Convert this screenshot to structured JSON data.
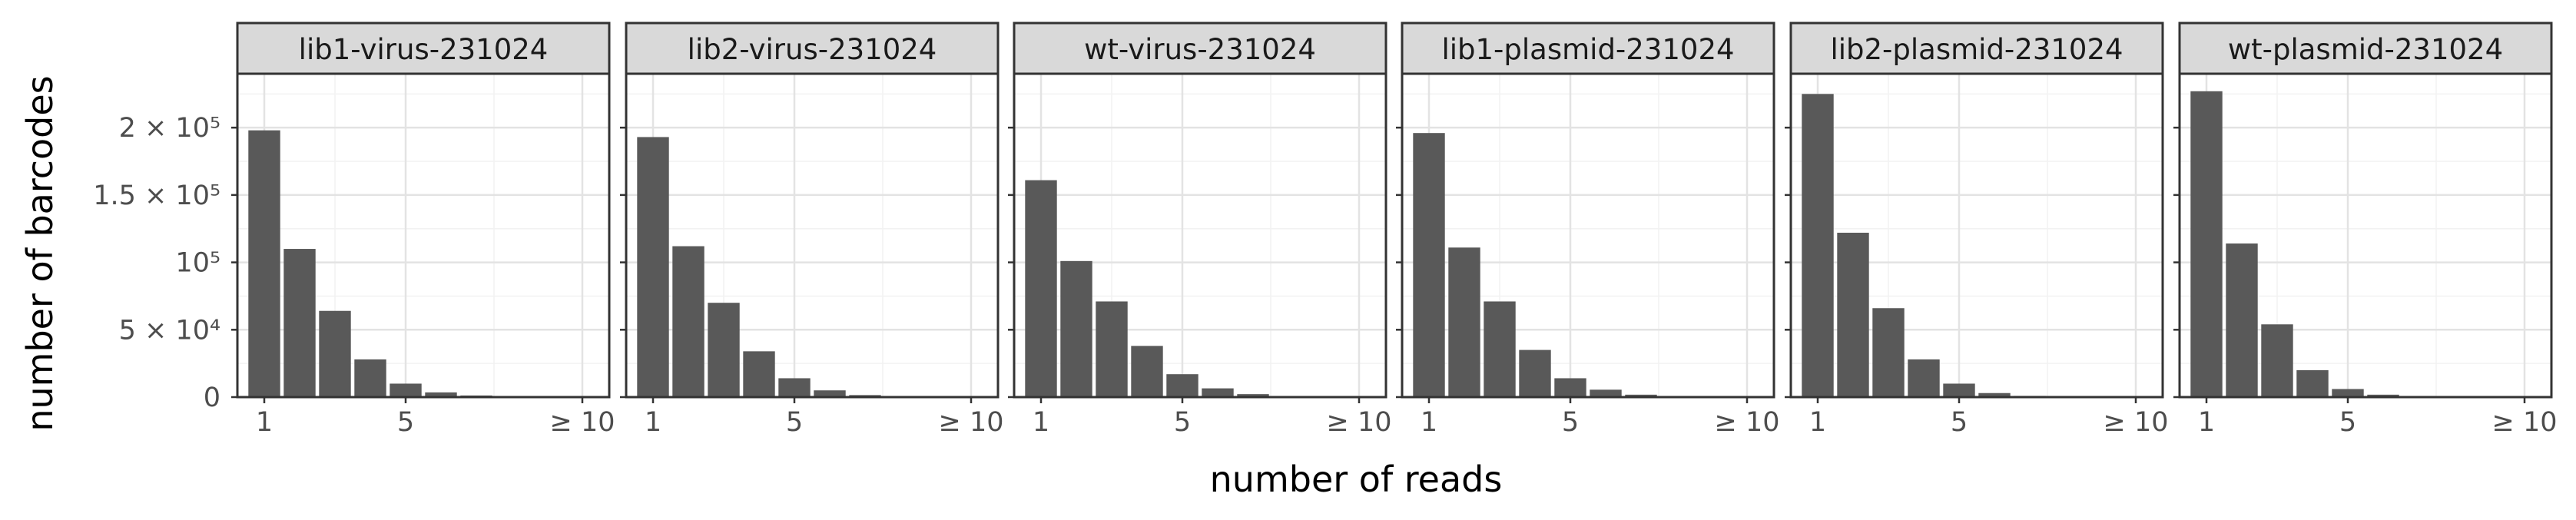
{
  "chart_data": {
    "type": "bar",
    "x_title": "number of reads",
    "y_title": "number of barcodes",
    "x_categories": [
      1,
      2,
      3,
      4,
      5,
      6,
      7,
      8,
      9,
      10
    ],
    "x_tick_labels": [
      {
        "value": 1,
        "label": "1"
      },
      {
        "value": 5,
        "label": "5"
      },
      {
        "value": 10,
        "label": "≥ 10"
      }
    ],
    "y_tick_labels": [
      {
        "value": 0,
        "label": "0"
      },
      {
        "value": 50000,
        "label": "5 × 10⁴"
      },
      {
        "value": 100000,
        "label": "10⁵"
      },
      {
        "value": 150000,
        "label": "1.5 × 10⁵"
      },
      {
        "value": 200000,
        "label": "2 × 10⁵"
      }
    ],
    "ylim": [
      0,
      240000
    ],
    "grid": true,
    "facets": [
      {
        "name": "lib1-virus-231024",
        "values": [
          198000,
          110000,
          64000,
          28000,
          10000,
          3500,
          1200,
          500,
          300,
          300
        ]
      },
      {
        "name": "lib2-virus-231024",
        "values": [
          193000,
          112000,
          70000,
          34000,
          14000,
          5000,
          1500,
          600,
          300,
          300
        ]
      },
      {
        "name": "wt-virus-231024",
        "values": [
          161000,
          101000,
          71000,
          38000,
          17000,
          6500,
          2200,
          800,
          400,
          400
        ]
      },
      {
        "name": "lib1-plasmid-231024",
        "values": [
          196000,
          111000,
          71000,
          35000,
          14000,
          5500,
          1800,
          700,
          300,
          300
        ]
      },
      {
        "name": "lib2-plasmid-231024",
        "values": [
          225000,
          122000,
          66000,
          28000,
          10000,
          3000,
          900,
          400,
          200,
          200
        ]
      },
      {
        "name": "wt-plasmid-231024",
        "values": [
          227000,
          114000,
          54000,
          20000,
          6000,
          1800,
          600,
          300,
          200,
          200
        ]
      }
    ]
  }
}
